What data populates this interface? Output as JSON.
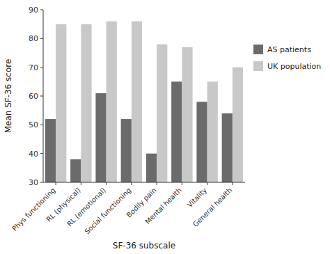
{
  "chart_data": {
    "type": "bar",
    "categories": [
      "Phys functioning",
      "RL (physical)",
      "RL (emotional)",
      "Social functioning",
      "Bodily pain",
      "Mental health",
      "Vitality",
      "General health"
    ],
    "series": [
      {
        "name": "AS patients",
        "color": "#6b6b6b",
        "values": [
          52,
          38,
          61,
          52,
          40,
          65,
          58,
          54
        ]
      },
      {
        "name": "UK population",
        "color": "#c8c8c8",
        "values": [
          85,
          85,
          86,
          86,
          78,
          77,
          65,
          70
        ]
      }
    ],
    "xlabel": "SF-36 subscale",
    "ylabel": "Mean SF-36 score",
    "ylim": [
      30,
      90
    ],
    "yticks": [
      30,
      40,
      50,
      60,
      70,
      80,
      90
    ],
    "grid": false,
    "legend": "right"
  }
}
